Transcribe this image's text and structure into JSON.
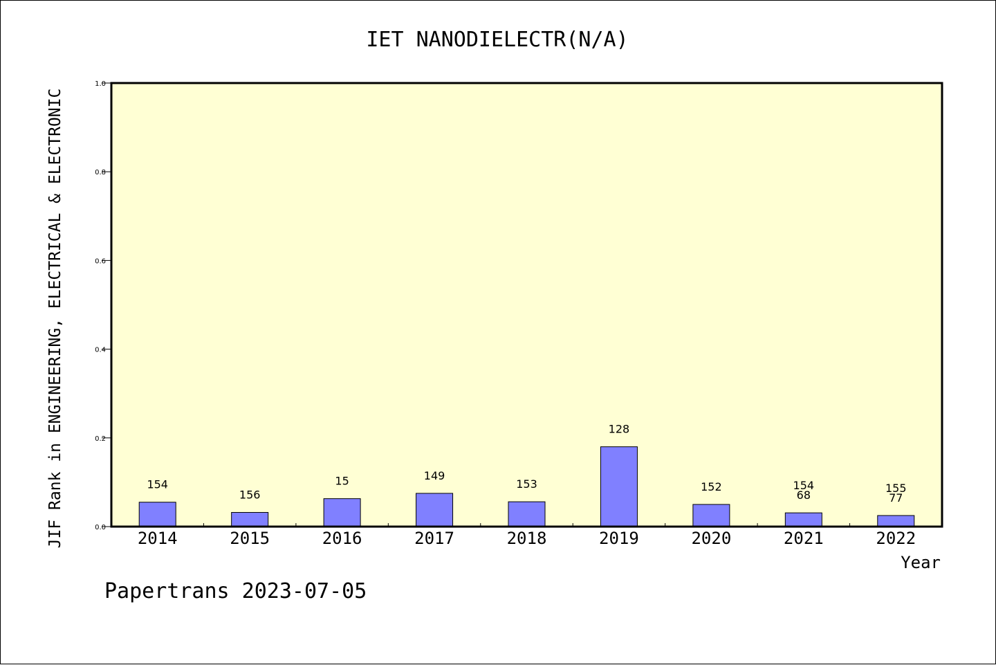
{
  "chart_data": {
    "type": "bar",
    "title": "IET NANODIELECTR(N/A)",
    "xlabel": "Year",
    "ylabel": "JIF Rank in ENGINEERING, ELECTRICAL & ELECTRONIC",
    "ylim": [
      0.0,
      1.0
    ],
    "yticks": [
      "0.0",
      "0.2",
      "0.4",
      "0.6",
      "0.8",
      "1.0"
    ],
    "categories": [
      "2014",
      "2015",
      "2016",
      "2017",
      "2018",
      "2019",
      "2020",
      "2021",
      "2022"
    ],
    "values": [
      0.055,
      0.032,
      0.063,
      0.075,
      0.056,
      0.18,
      0.05,
      0.031,
      0.025
    ],
    "bar_labels": [
      [
        "154"
      ],
      [
        "156"
      ],
      [
        "15"
      ],
      [
        "149"
      ],
      [
        "153"
      ],
      [
        "128"
      ],
      [
        "152"
      ],
      [
        "154",
        "68"
      ],
      [
        "155",
        "77"
      ]
    ],
    "grid": false,
    "bar_color": "#8080ff",
    "plot_background": "#ffffd4"
  },
  "footer": "Papertrans 2023-07-05"
}
